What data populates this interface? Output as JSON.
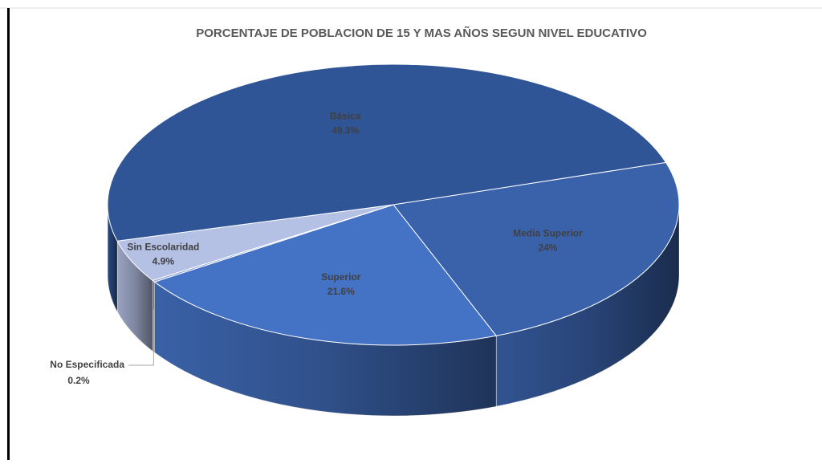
{
  "chart_data": {
    "type": "pie",
    "title": "PORCENTAJE DE POBLACION DE 15 Y MAS AÑOS SEGUN NIVEL EDUCATIVO",
    "categories": [
      "Media Superior",
      "Superior",
      "No Especificada",
      "Sin Escolaridad",
      "Básica"
    ],
    "values": [
      24,
      21.6,
      0.2,
      4.9,
      49.3
    ],
    "value_labels": [
      "24%",
      "21.6%",
      "0.2%",
      "4.9%",
      "49.3%"
    ],
    "colors": [
      "#3a62ab",
      "#4472c4",
      "#8ea2d8",
      "#b4c0e4",
      "#2f5597"
    ]
  }
}
